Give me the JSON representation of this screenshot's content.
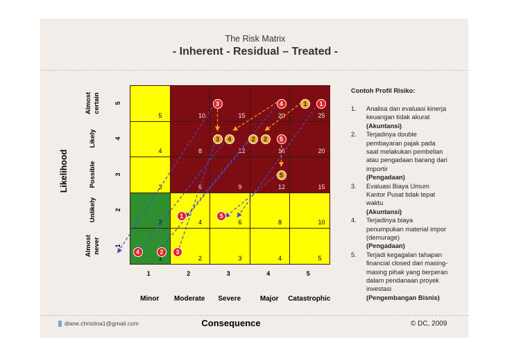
{
  "title": "The Risk Matrix",
  "subtitle": "- Inherent - Residual – Treated -",
  "y_axis_label": "Likelihood",
  "x_axis_label": "Consequence",
  "likelihood_levels": [
    {
      "label": "Almost certain",
      "num": "5"
    },
    {
      "label": "Likely",
      "num": "4"
    },
    {
      "label": "Possible",
      "num": "3"
    },
    {
      "label": "Unlikely",
      "num": "2"
    },
    {
      "label": "Almost never",
      "num": "1"
    }
  ],
  "consequence_levels": [
    {
      "label": "Minor",
      "num": "1"
    },
    {
      "label": "Moderate",
      "num": "2"
    },
    {
      "label": "Severe",
      "num": "3"
    },
    {
      "label": "Major",
      "num": "4"
    },
    {
      "label": "Catastrophic",
      "num": "5"
    }
  ],
  "matrix": {
    "scores": [
      [
        "5",
        "10",
        "15",
        "20",
        "25"
      ],
      [
        "4",
        "8",
        "12",
        "16",
        "20"
      ],
      [
        "3",
        "6",
        "9",
        "12",
        "15"
      ],
      [
        "2",
        "4",
        "6",
        "8",
        "10"
      ],
      [
        "1",
        "2",
        "3",
        "4",
        "5"
      ]
    ],
    "zone_colors": {
      "high": "#7e0d13",
      "medium": "#ffff00",
      "low": "#2e8f30"
    },
    "zones": [
      [
        "medium",
        "high",
        "high",
        "high",
        "high"
      ],
      [
        "medium",
        "high",
        "high",
        "high",
        "high"
      ],
      [
        "medium",
        "high",
        "high",
        "high",
        "high"
      ],
      [
        "low",
        "medium",
        "medium",
        "medium",
        "medium"
      ],
      [
        "low",
        "medium",
        "medium",
        "medium",
        "medium"
      ]
    ]
  },
  "markers": {
    "inherent": [
      {
        "id": "3",
        "likelihood": 5,
        "consequence": 2.7
      },
      {
        "id": "4",
        "likelihood": 5,
        "consequence": 4.3
      },
      {
        "id": "1",
        "likelihood": 5,
        "consequence": 5.3
      }
    ],
    "treated": [
      {
        "id": "1",
        "likelihood": 5,
        "consequence": 4.9
      },
      {
        "id": "3",
        "likelihood": 4,
        "consequence": 2.7
      },
      {
        "id": "4",
        "likelihood": 4,
        "consequence": 3.0
      },
      {
        "id": "2",
        "likelihood": 4,
        "consequence": 3.6
      },
      {
        "id": "2",
        "likelihood": 4,
        "consequence": 3.9
      },
      {
        "id": "5",
        "likelihood": 3,
        "consequence": 4.3
      }
    ],
    "residual": [
      {
        "id": "5",
        "likelihood": 4,
        "consequence": 4.3
      },
      {
        "id": "1",
        "likelihood": 2,
        "consequence": 1.8
      },
      {
        "id": "5",
        "likelihood": 2,
        "consequence": 2.8
      },
      {
        "id": "4",
        "likelihood": 1,
        "consequence": 0.7
      },
      {
        "id": "2",
        "likelihood": 1,
        "consequence": 1.3
      },
      {
        "id": "3",
        "likelihood": 1,
        "consequence": 1.7
      }
    ],
    "colors": {
      "inherent": "#e42020",
      "treated": "#f5a623",
      "residual": "#e42020",
      "arrow_to_treated": "#f5a623",
      "arrow_to_residual": "#6a6ad8"
    },
    "movements": [
      {
        "from": [
          5,
          2.7
        ],
        "to": [
          4,
          2.7
        ],
        "color": "treated"
      },
      {
        "from": [
          5,
          4.3
        ],
        "to": [
          4,
          3.1
        ],
        "color": "treated"
      },
      {
        "from": [
          4,
          4.3
        ],
        "to": [
          3,
          4.3
        ],
        "color": "treated"
      },
      {
        "from": [
          5,
          4.9
        ],
        "to": [
          4,
          3.9
        ],
        "color": "treated"
      },
      {
        "from": [
          5,
          2.7
        ],
        "to": [
          1,
          0.2
        ],
        "color": "residual"
      },
      {
        "from": [
          5,
          4.3
        ],
        "to": [
          2,
          1.9
        ],
        "color": "residual"
      },
      {
        "from": [
          4,
          3.6
        ],
        "to": [
          1,
          1.2
        ],
        "color": "residual"
      },
      {
        "from": [
          4,
          2.7
        ],
        "to": [
          1,
          1.7
        ],
        "color": "residual"
      },
      {
        "from": [
          3,
          4.3
        ],
        "to": [
          2,
          2.9
        ],
        "color": "residual"
      },
      {
        "from": [
          5,
          5.3
        ],
        "to": [
          2,
          3.2
        ],
        "color": "residual"
      },
      {
        "from": [
          4,
          3.0
        ],
        "to": [
          1,
          0.7
        ],
        "color": "residual"
      }
    ]
  },
  "risk_profile": {
    "heading": "Contoh Profil Risiko:",
    "items": [
      {
        "num": "1.",
        "lines": [
          "Analisa dan evaluasi kinerja",
          "keuangan tidak akurat"
        ],
        "owner": "(Akuntansi)"
      },
      {
        "num": "2.",
        "lines": [
          "Terjadinya double",
          "pembayaran pajak pada",
          "saat melakukan pembelian",
          "atau pengadaan barang dari",
          "importir"
        ],
        "owner": "(Pengadaan)"
      },
      {
        "num": "3.",
        "lines": [
          "Evaluasi Biaya Umum",
          "Kantor Pusat tidak tepat",
          "waktu"
        ],
        "owner": "(Akuntansi)"
      },
      {
        "num": "4.",
        "lines": [
          "Terjadinya biaya",
          "penumpukan material impor",
          "(demurage)"
        ],
        "owner": "(Pengadaan)"
      },
      {
        "num": "5.",
        "lines": [
          "Terjadi kegagalan tahapan",
          "financial closed dari masing-",
          "masing pihak yang berperan",
          "dalam pendanaan proyek",
          "investasi"
        ],
        "owner": "(Pengembangan Bisnis)"
      }
    ]
  },
  "footer": {
    "email": "diane.christina1@gmail.com",
    "copyright": "© DC, 2009"
  }
}
